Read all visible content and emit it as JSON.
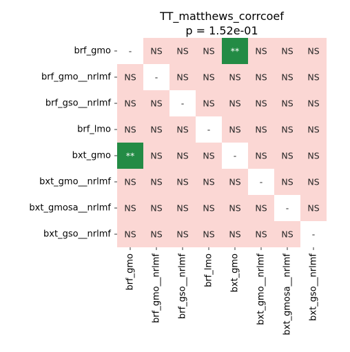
{
  "chart_data": {
    "type": "heatmap",
    "title": "TT_matthews_corrcoef",
    "subtitle": "p = 1.52e-01",
    "rows": [
      "brf_gmo",
      "brf_gmo__nrlmf",
      "brf_gso__nrlmf",
      "brf_lmo",
      "bxt_gmo",
      "bxt_gmo__nrlmf",
      "bxt_gmosa__nrlmf",
      "bxt_gso__nrlmf"
    ],
    "columns": [
      "brf_gmo",
      "brf_gmo__nrlmf",
      "brf_gso__nrlmf",
      "brf_lmo",
      "bxt_gmo",
      "bxt_gmo__nrlmf",
      "bxt_gmosa__nrlmf",
      "bxt_gso__nrlmf"
    ],
    "cells": [
      [
        "-",
        "NS",
        "NS",
        "NS",
        "**",
        "NS",
        "NS",
        "NS"
      ],
      [
        "NS",
        "-",
        "NS",
        "NS",
        "NS",
        "NS",
        "NS",
        "NS"
      ],
      [
        "NS",
        "NS",
        "-",
        "NS",
        "NS",
        "NS",
        "NS",
        "NS"
      ],
      [
        "NS",
        "NS",
        "NS",
        "-",
        "NS",
        "NS",
        "NS",
        "NS"
      ],
      [
        "**",
        "NS",
        "NS",
        "NS",
        "-",
        "NS",
        "NS",
        "NS"
      ],
      [
        "NS",
        "NS",
        "NS",
        "NS",
        "NS",
        "-",
        "NS",
        "NS"
      ],
      [
        "NS",
        "NS",
        "NS",
        "NS",
        "NS",
        "NS",
        "-",
        "NS"
      ],
      [
        "NS",
        "NS",
        "NS",
        "NS",
        "NS",
        "NS",
        "NS",
        "-"
      ]
    ],
    "colors": {
      "NS": "#fbd7d4",
      "**": "#238b45",
      "-": "#ffffff",
      "text_dark": "#262626",
      "text_light": "#ffffff"
    },
    "grid": false,
    "legend": "none"
  }
}
